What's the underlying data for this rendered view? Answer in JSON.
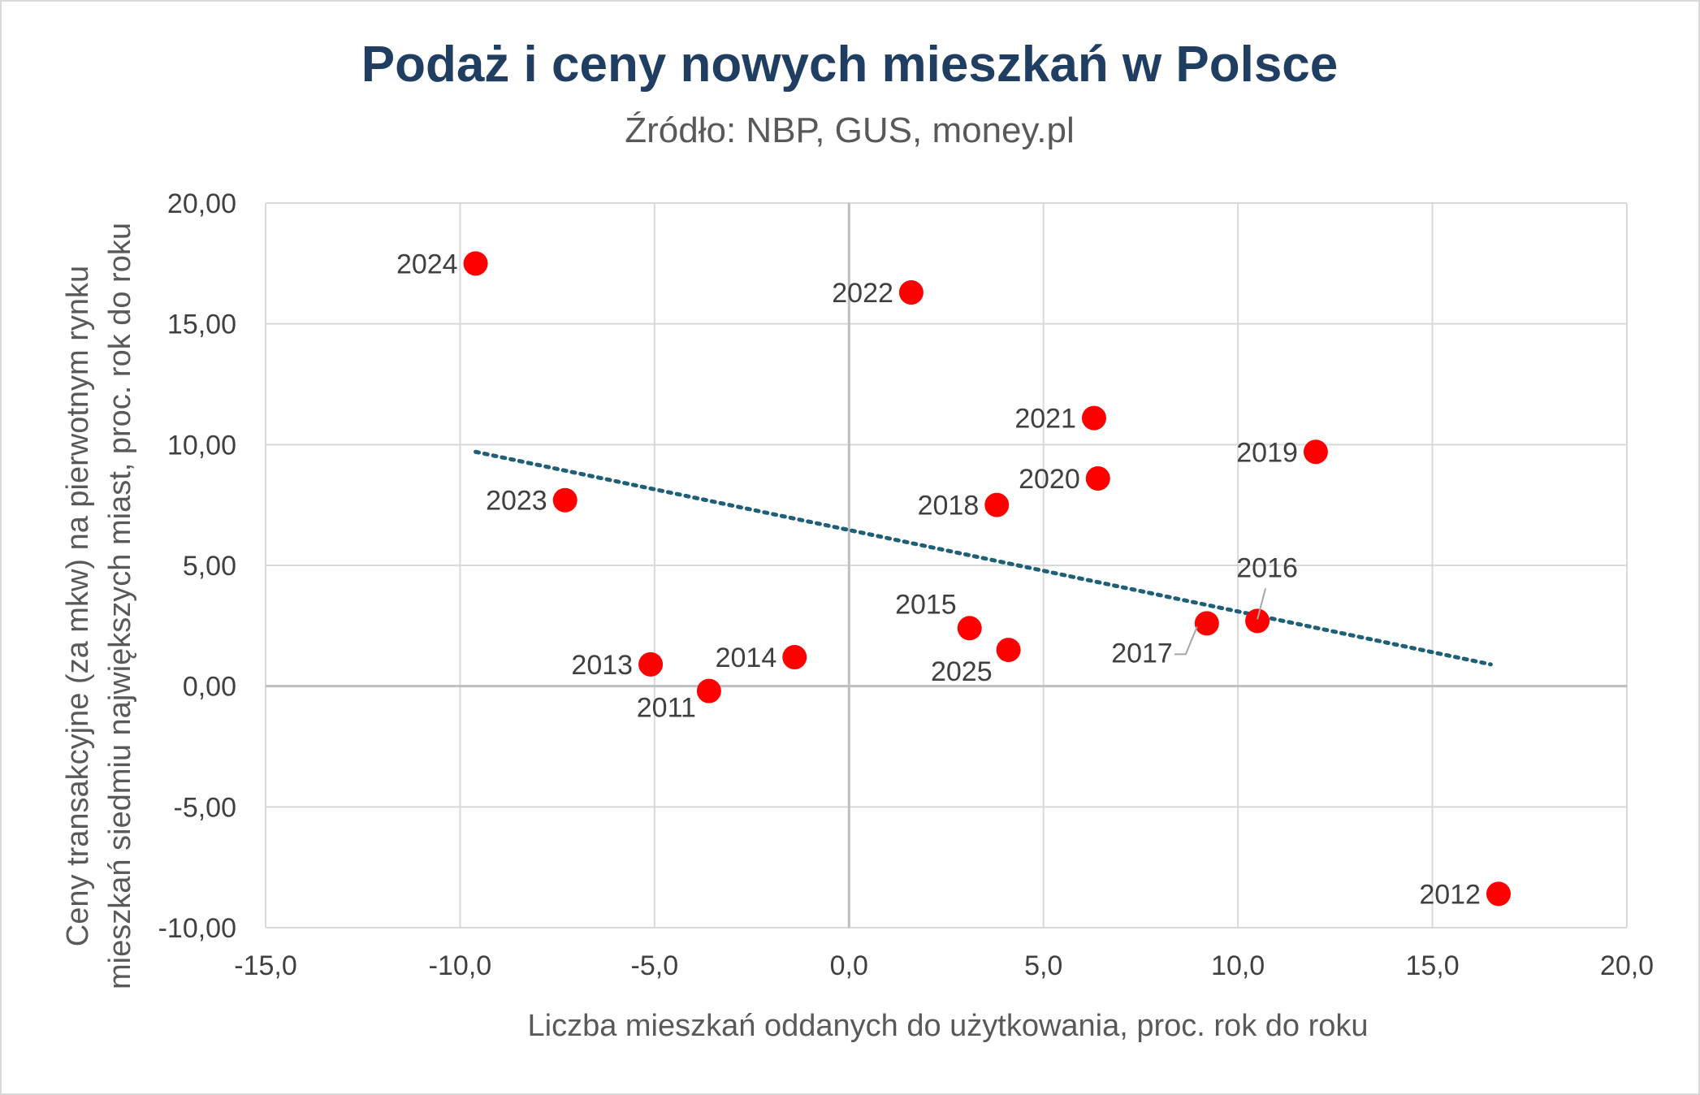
{
  "chart_data": {
    "type": "scatter",
    "title": "Podaż i ceny nowych mieszkań w Polsce",
    "subtitle": "Źródło: NBP, GUS, money.pl",
    "xlabel": "Liczba mieszkań oddanych do użytkowania, proc. rok do roku",
    "ylabel_lines": [
      "Ceny transakcyjne (za mkw) na pierwotnym rynku",
      "mieszkań siedmiu największych miast, proc. rok do roku"
    ],
    "xlim": [
      -15,
      20
    ],
    "ylim": [
      -10,
      20
    ],
    "x_ticks": [
      -15,
      -10,
      -5,
      0,
      5,
      10,
      15,
      20
    ],
    "x_tick_labels": [
      "-15,0",
      "-10,0",
      "-5,0",
      "0,0",
      "5,0",
      "10,0",
      "15,0",
      "20,0"
    ],
    "y_ticks": [
      -10,
      -5,
      0,
      5,
      10,
      15,
      20
    ],
    "y_tick_labels": [
      "-10,00",
      "-5,00",
      "0,00",
      "5,00",
      "10,00",
      "15,00",
      "20,00"
    ],
    "grid": true,
    "marker_color": "#ff0000",
    "trendline_color": "#1f5f78",
    "points": [
      {
        "label": "2011",
        "x": -3.6,
        "y": -0.2
      },
      {
        "label": "2012",
        "x": 16.7,
        "y": -8.6
      },
      {
        "label": "2013",
        "x": -5.1,
        "y": 0.9
      },
      {
        "label": "2014",
        "x": -1.4,
        "y": 1.2
      },
      {
        "label": "2015",
        "x": 3.1,
        "y": 2.4
      },
      {
        "label": "2016",
        "x": 10.5,
        "y": 2.7
      },
      {
        "label": "2017",
        "x": 9.2,
        "y": 2.6
      },
      {
        "label": "2018",
        "x": 3.8,
        "y": 7.5
      },
      {
        "label": "2019",
        "x": 12.0,
        "y": 9.7
      },
      {
        "label": "2020",
        "x": 6.4,
        "y": 8.6
      },
      {
        "label": "2021",
        "x": 6.3,
        "y": 11.1
      },
      {
        "label": "2022",
        "x": 1.6,
        "y": 16.3
      },
      {
        "label": "2023",
        "x": -7.3,
        "y": 7.7
      },
      {
        "label": "2024",
        "x": -9.6,
        "y": 17.5
      },
      {
        "label": "2025",
        "x": 4.1,
        "y": 1.5
      }
    ],
    "trendline": {
      "x_start": -9.6,
      "y_start": 9.7,
      "x_end": 16.5,
      "y_end": 0.9
    }
  }
}
